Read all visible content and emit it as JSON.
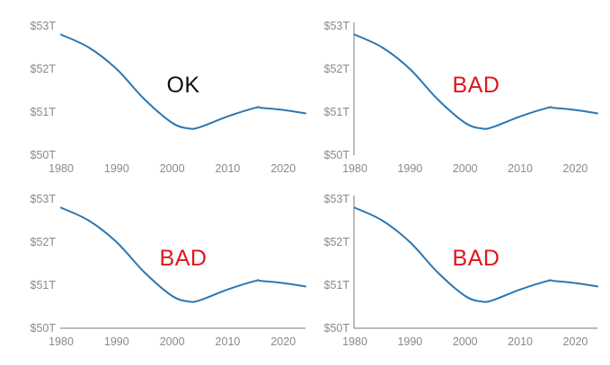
{
  "colors": {
    "series": "#2a77b4",
    "ok": "#111111",
    "bad": "#e0161c"
  },
  "chart_data": [
    {
      "type": "line",
      "label": "OK",
      "verdict": "ok",
      "axes": {
        "x_axis_line": false,
        "y_axis_line": false
      },
      "x": [
        1980,
        1985,
        1990,
        1995,
        2000,
        2003,
        2005,
        2010,
        2015,
        2016,
        2020,
        2024
      ],
      "series": [
        {
          "values": [
            52.8,
            52.5,
            52.0,
            51.3,
            50.75,
            50.62,
            50.65,
            50.9,
            51.1,
            51.1,
            51.05,
            50.97
          ]
        }
      ],
      "xlim": [
        1980,
        2024
      ],
      "ylim": [
        50,
        53
      ],
      "xticks": [
        "1980",
        "1990",
        "2000",
        "2010",
        "2020"
      ],
      "yticks": [
        "$53T",
        "$52T",
        "$51T",
        "$50T"
      ]
    },
    {
      "type": "line",
      "label": "BAD",
      "verdict": "bad",
      "axes": {
        "x_axis_line": false,
        "y_axis_line": true
      },
      "x": [
        1980,
        1985,
        1990,
        1995,
        2000,
        2003,
        2005,
        2010,
        2015,
        2016,
        2020,
        2024
      ],
      "series": [
        {
          "values": [
            52.8,
            52.5,
            52.0,
            51.3,
            50.75,
            50.62,
            50.65,
            50.9,
            51.1,
            51.1,
            51.05,
            50.97
          ]
        }
      ],
      "xlim": [
        1980,
        2024
      ],
      "ylim": [
        50,
        53
      ],
      "xticks": [
        "1980",
        "1990",
        "2000",
        "2010",
        "2020"
      ],
      "yticks": [
        "$53T",
        "$52T",
        "$51T",
        "$50T"
      ]
    },
    {
      "type": "line",
      "label": "BAD",
      "verdict": "bad",
      "axes": {
        "x_axis_line": true,
        "y_axis_line": false
      },
      "x": [
        1980,
        1985,
        1990,
        1995,
        2000,
        2003,
        2005,
        2010,
        2015,
        2016,
        2020,
        2024
      ],
      "series": [
        {
          "values": [
            52.8,
            52.5,
            52.0,
            51.3,
            50.75,
            50.62,
            50.65,
            50.9,
            51.1,
            51.1,
            51.05,
            50.97
          ]
        }
      ],
      "xlim": [
        1980,
        2024
      ],
      "ylim": [
        50,
        53
      ],
      "xticks": [
        "1980",
        "1990",
        "2000",
        "2010",
        "2020"
      ],
      "yticks": [
        "$53T",
        "$52T",
        "$51T",
        "$50T"
      ]
    },
    {
      "type": "line",
      "label": "BAD",
      "verdict": "bad",
      "axes": {
        "x_axis_line": true,
        "y_axis_line": true
      },
      "x": [
        1980,
        1985,
        1990,
        1995,
        2000,
        2003,
        2005,
        2010,
        2015,
        2016,
        2020,
        2024
      ],
      "series": [
        {
          "values": [
            52.8,
            52.5,
            52.0,
            51.3,
            50.75,
            50.62,
            50.65,
            50.9,
            51.1,
            51.1,
            51.05,
            50.97
          ]
        }
      ],
      "xlim": [
        1980,
        2024
      ],
      "ylim": [
        50,
        53
      ],
      "xticks": [
        "1980",
        "1990",
        "2000",
        "2010",
        "2020"
      ],
      "yticks": [
        "$53T",
        "$52T",
        "$51T",
        "$50T"
      ]
    }
  ]
}
